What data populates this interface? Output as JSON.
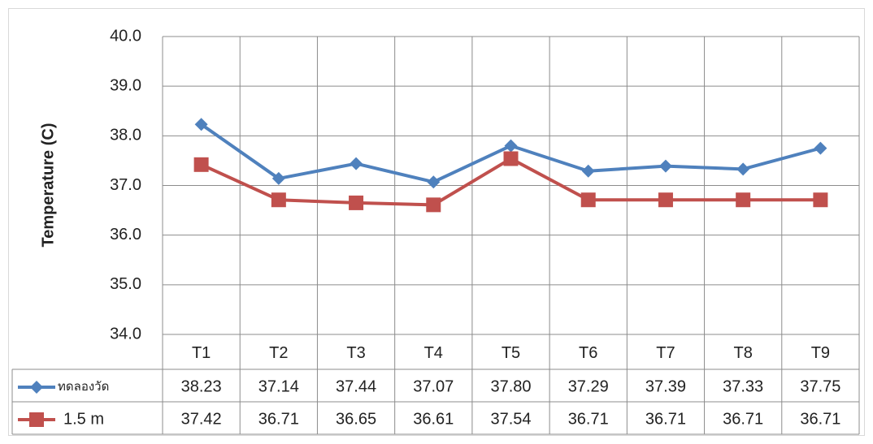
{
  "chart_data": {
    "type": "line",
    "y_label": "Temperature (C)",
    "categories": [
      "T1",
      "T2",
      "T3",
      "T4",
      "T5",
      "T6",
      "T7",
      "T8",
      "T9"
    ],
    "series": [
      {
        "name": "ทดลองวัด",
        "color": "#4f81bd",
        "marker": "diamond",
        "values": [
          38.23,
          37.14,
          37.44,
          37.07,
          37.8,
          37.29,
          37.39,
          37.33,
          37.75
        ],
        "value_labels": [
          "38.23",
          "37.14",
          "37.44",
          "37.07",
          "37.80",
          "37.29",
          "37.39",
          "37.33",
          "37.75"
        ]
      },
      {
        "name": "1.5 m",
        "color": "#c0504d",
        "marker": "square",
        "values": [
          37.42,
          36.71,
          36.65,
          36.61,
          37.54,
          36.71,
          36.71,
          36.71,
          36.71
        ],
        "value_labels": [
          "37.42",
          "36.71",
          "36.65",
          "36.61",
          "37.54",
          "36.71",
          "36.71",
          "36.71",
          "36.71"
        ]
      }
    ],
    "ylim": [
      34,
      40
    ],
    "yticks": [
      {
        "value": 34,
        "label": "34.0"
      },
      {
        "value": 35,
        "label": "35.0"
      },
      {
        "value": 36,
        "label": "36.0"
      },
      {
        "value": 37,
        "label": "37.0"
      },
      {
        "value": 38,
        "label": "38.0"
      },
      {
        "value": 39,
        "label": "39.0"
      },
      {
        "value": 40,
        "label": "40.0"
      }
    ],
    "grid": true
  }
}
